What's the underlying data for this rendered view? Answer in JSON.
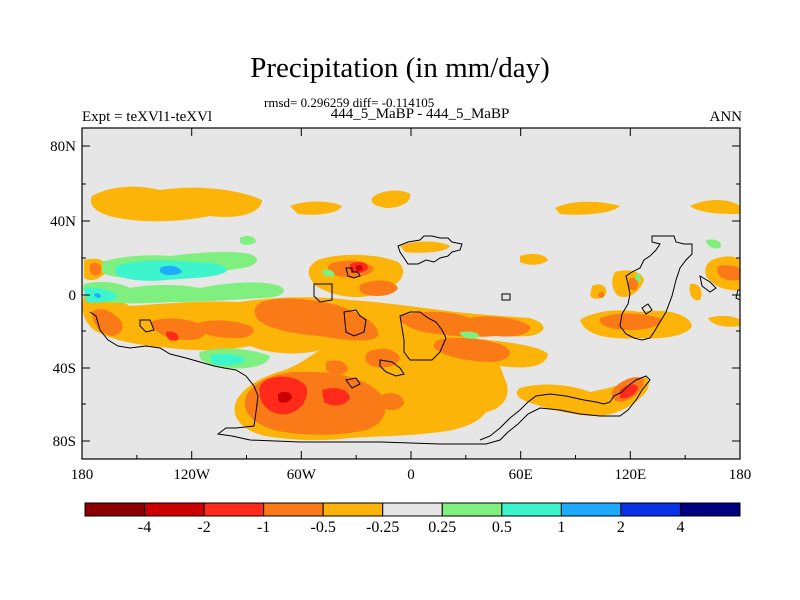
{
  "title": "Precipitation (in mm/day)",
  "subtitle": "rmsd= 0.296259 diff= -0.114105",
  "left_label": "Expt = teXVl1-teXVl",
  "center_label": "444_5_MaBP - 444_5_MaBP",
  "right_label": "ANN",
  "lat_ticks": [
    "80N",
    "40N",
    "0",
    "40S",
    "80S"
  ],
  "lon_ticks": [
    "180",
    "120W",
    "60W",
    "0",
    "60E",
    "120E",
    "180"
  ],
  "colorbar": {
    "labels": [
      "-4",
      "-2",
      "-1",
      "-0.5",
      "-0.25",
      "0.25",
      "0.5",
      "1",
      "2",
      "4"
    ],
    "colors": [
      "#8b0000",
      "#cd0000",
      "#ff2a1a",
      "#fa7a18",
      "#fcb409",
      "#e6e6e6",
      "#7ff07f",
      "#3cf5cc",
      "#1eaaff",
      "#0a32e6",
      "#000080"
    ]
  },
  "colors": {
    "background": "#e6e6e6",
    "orange_light": "#fcb409",
    "orange": "#fa7a18",
    "red": "#ff2a1a",
    "dark_red": "#cd0000",
    "green": "#7ff07f",
    "cyan": "#3cf5cc",
    "blue": "#1eaaff"
  }
}
